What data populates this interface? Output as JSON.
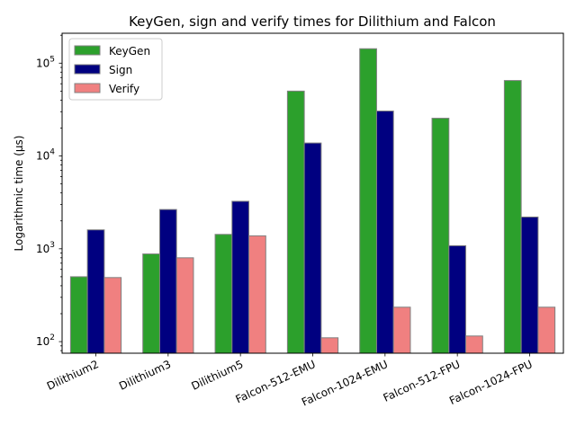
{
  "chart_data": {
    "type": "bar",
    "title": "KeyGen, sign and verify times for Dilithium and Falcon",
    "xlabel": "",
    "ylabel": "Logarithmic time (μs)",
    "yscale": "log",
    "ylim": [
      75,
      210000
    ],
    "yticks": [
      {
        "value": 100,
        "base": "10",
        "exp": "2"
      },
      {
        "value": 1000,
        "base": "10",
        "exp": "3"
      },
      {
        "value": 10000,
        "base": "10",
        "exp": "4"
      },
      {
        "value": 100000,
        "base": "10",
        "exp": "5"
      }
    ],
    "categories": [
      "Dilithium2",
      "Dilithium3",
      "Dilithium5",
      "Falcon-512-EMU",
      "Falcon-1024-EMU",
      "Falcon-512-FPU",
      "Falcon-1024-FPU"
    ],
    "series": [
      {
        "name": "KeyGen",
        "color": "#2ca02c",
        "values": [
          500,
          880,
          1430,
          50000,
          143000,
          25500,
          65000
        ]
      },
      {
        "name": "Sign",
        "color": "#000080",
        "values": [
          1600,
          2650,
          3250,
          13800,
          30500,
          1080,
          2200
        ]
      },
      {
        "name": "Verify",
        "color": "#f08080",
        "values": [
          490,
          800,
          1380,
          110,
          235,
          115,
          235
        ]
      }
    ],
    "grid": false,
    "legend_position": "top-left"
  }
}
